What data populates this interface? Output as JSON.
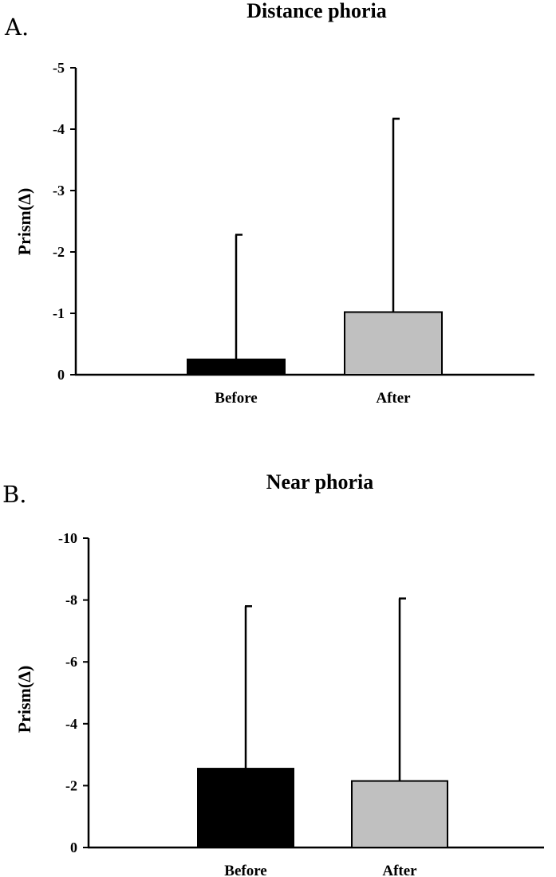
{
  "panels": [
    {
      "letter": "A."
    },
    {
      "letter": "B."
    }
  ],
  "chart_data": [
    {
      "type": "bar",
      "title": "Distance phoria",
      "ylabel": "Prism(Δ)",
      "xlabel": "",
      "categories": [
        "Before",
        "After"
      ],
      "values": [
        -0.25,
        -1.02
      ],
      "error_upper": [
        2.03,
        3.15
      ],
      "colors": [
        "#000000",
        "#c0c0c0"
      ],
      "ylim": [
        0,
        -5
      ],
      "yticks": [
        0,
        -1,
        -2,
        -3,
        -4,
        -5
      ],
      "ytick_labels": [
        "0",
        "-1",
        "-2",
        "-3",
        "-4",
        "-5"
      ],
      "error_bars": "one-sided",
      "grid": false,
      "legend": "none"
    },
    {
      "type": "bar",
      "title": "Near phoria",
      "ylabel": "Prism(Δ)",
      "xlabel": "",
      "categories": [
        "Before",
        "After"
      ],
      "values": [
        -2.55,
        -2.15
      ],
      "error_upper": [
        5.25,
        5.9
      ],
      "colors": [
        "#000000",
        "#c0c0c0"
      ],
      "ylim": [
        0,
        -10
      ],
      "yticks": [
        0,
        -2,
        -4,
        -6,
        -8,
        -10
      ],
      "ytick_labels": [
        "0",
        "-2",
        "-4",
        "-6",
        "-8",
        "-10"
      ],
      "error_bars": "one-sided",
      "grid": false,
      "legend": "none"
    }
  ]
}
